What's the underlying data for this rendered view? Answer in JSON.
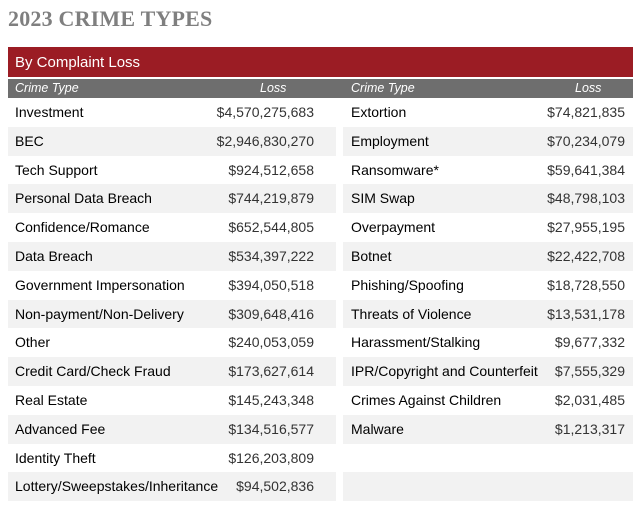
{
  "title": "2023 CRIME TYPES",
  "banner": "By Complaint Loss",
  "headers": {
    "crime_type": "Crime Type",
    "loss": "Loss"
  },
  "left": [
    {
      "type": "Investment",
      "loss": "$4,570,275,683"
    },
    {
      "type": "BEC",
      "loss": "$2,946,830,270"
    },
    {
      "type": "Tech Support",
      "loss": "$924,512,658"
    },
    {
      "type": "Personal Data Breach",
      "loss": "$744,219,879"
    },
    {
      "type": "Confidence/Romance",
      "loss": "$652,544,805"
    },
    {
      "type": "Data Breach",
      "loss": "$534,397,222"
    },
    {
      "type": "Government Impersonation",
      "loss": "$394,050,518"
    },
    {
      "type": "Non-payment/Non-Delivery",
      "loss": "$309,648,416"
    },
    {
      "type": "Other",
      "loss": "$240,053,059"
    },
    {
      "type": "Credit Card/Check Fraud",
      "loss": "$173,627,614"
    },
    {
      "type": "Real Estate",
      "loss": "$145,243,348"
    },
    {
      "type": "Advanced Fee",
      "loss": "$134,516,577"
    },
    {
      "type": "Identity Theft",
      "loss": "$126,203,809"
    },
    {
      "type": "Lottery/Sweepstakes/Inheritance",
      "loss": "$94,502,836"
    }
  ],
  "right": [
    {
      "type": "Extortion",
      "loss": "$74,821,835"
    },
    {
      "type": "Employment",
      "loss": "$70,234,079"
    },
    {
      "type": "Ransomware*",
      "loss": "$59,641,384"
    },
    {
      "type": "SIM Swap",
      "loss": "$48,798,103"
    },
    {
      "type": "Overpayment",
      "loss": "$27,955,195"
    },
    {
      "type": "Botnet",
      "loss": "$22,422,708"
    },
    {
      "type": "Phishing/Spoofing",
      "loss": "$18,728,550"
    },
    {
      "type": "Threats of Violence",
      "loss": "$13,531,178"
    },
    {
      "type": "Harassment/Stalking",
      "loss": "$9,677,332"
    },
    {
      "type": "IPR/Copyright and Counterfeit",
      "loss": "$7,555,329"
    },
    {
      "type": "Crimes Against Children",
      "loss": "$2,031,485"
    },
    {
      "type": "Malware",
      "loss": "$1,213,317"
    }
  ]
}
